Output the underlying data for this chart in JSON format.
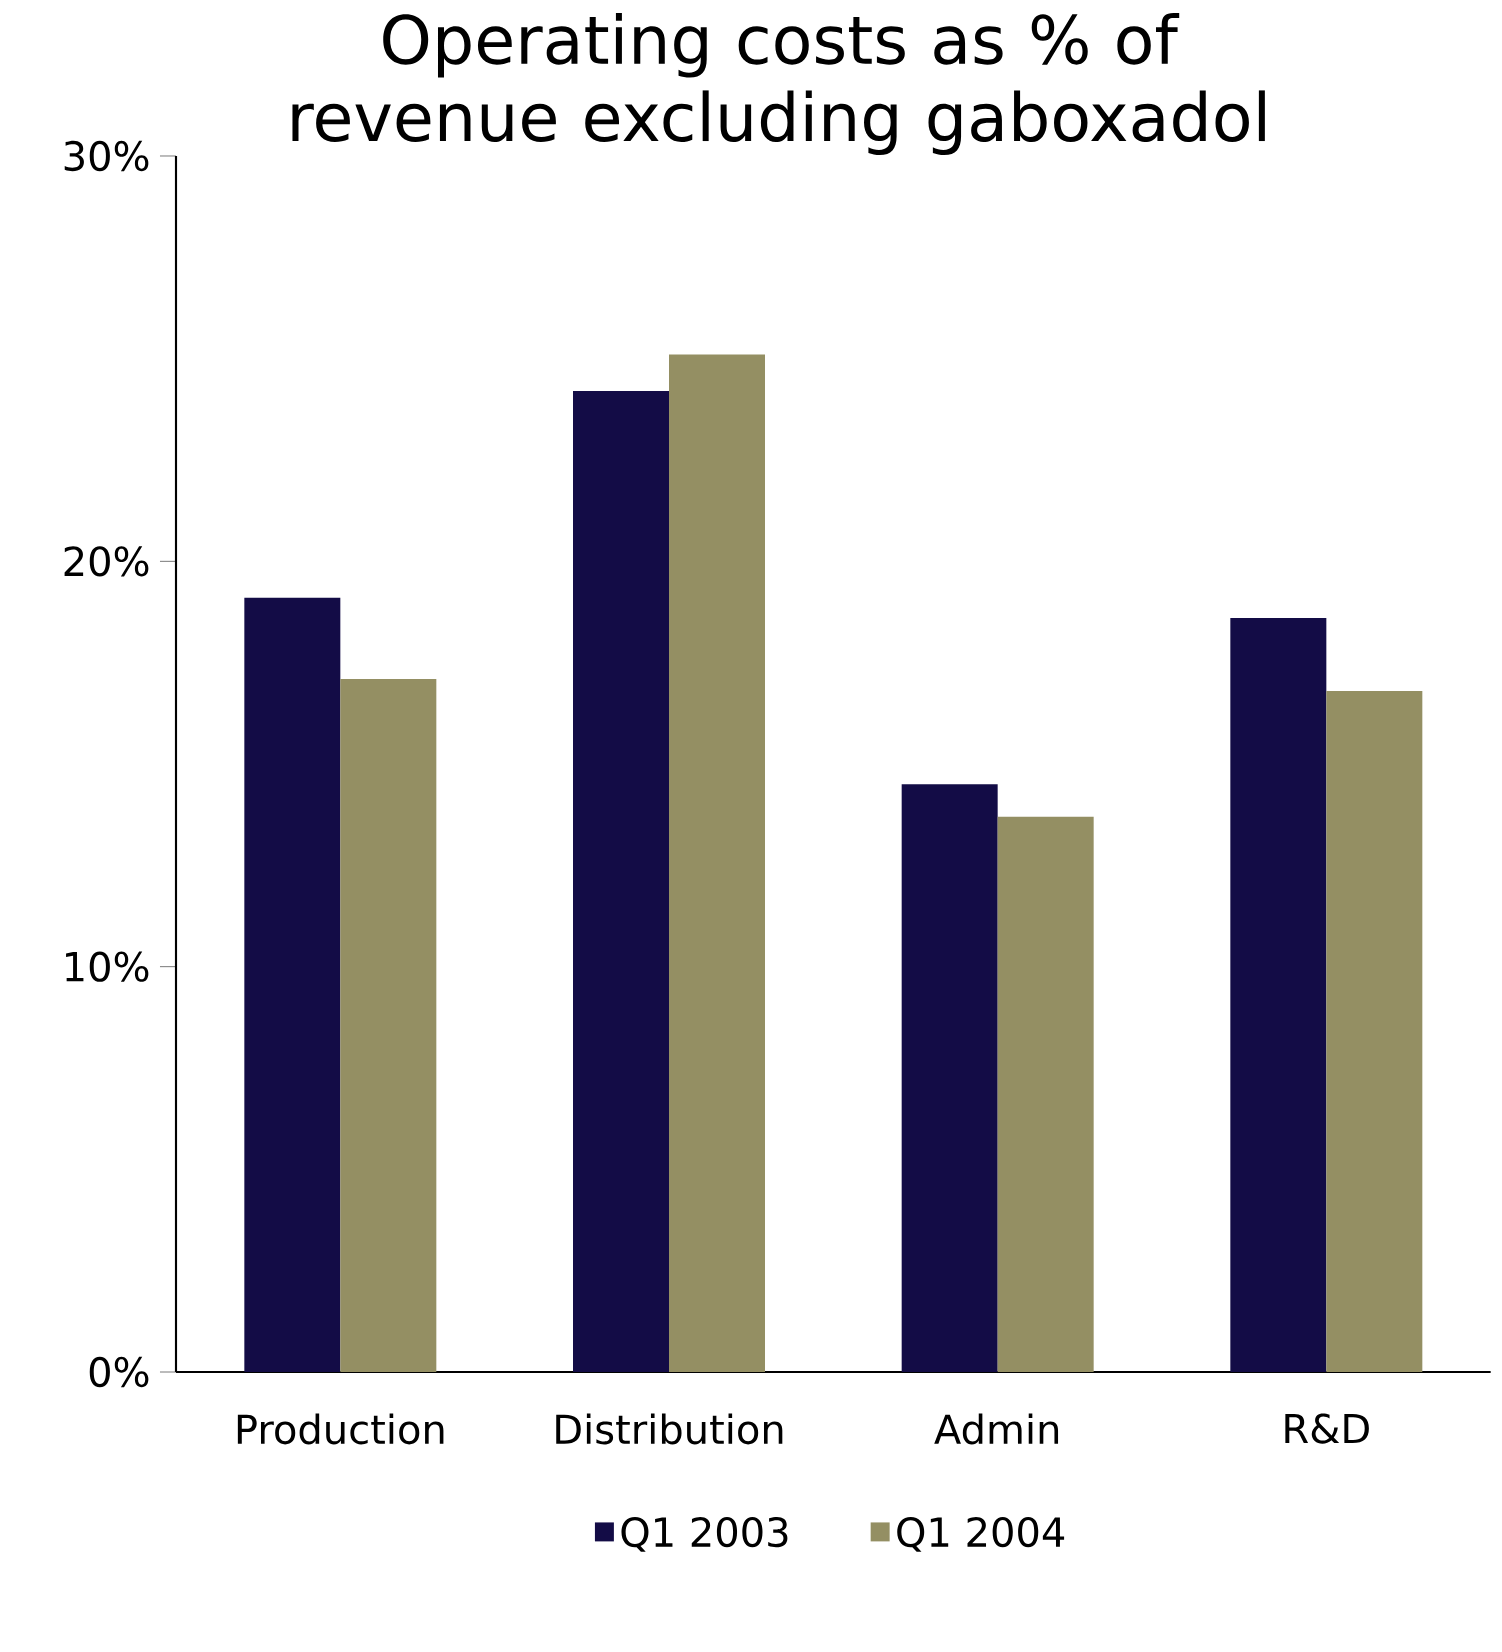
{
  "chart_data": {
    "type": "bar",
    "title": "Operating costs as % of revenue excluding gaboxadol",
    "categories": [
      "Production",
      "Distribution",
      "Admin",
      "R&D"
    ],
    "series": [
      {
        "name": "Q1 2003",
        "color": "#130c46",
        "values": [
          19.1,
          24.2,
          14.5,
          18.6
        ]
      },
      {
        "name": "Q1 2004",
        "color": "#948f63",
        "values": [
          17.1,
          25.1,
          13.7,
          16.8
        ]
      }
    ],
    "ylim": [
      0,
      30
    ],
    "yticks": [
      {
        "value": 0,
        "label": "0%"
      },
      {
        "value": 10,
        "label": "10%"
      },
      {
        "value": 20,
        "label": "20%"
      },
      {
        "value": 30,
        "label": "30%"
      }
    ],
    "legend": "bottom"
  }
}
